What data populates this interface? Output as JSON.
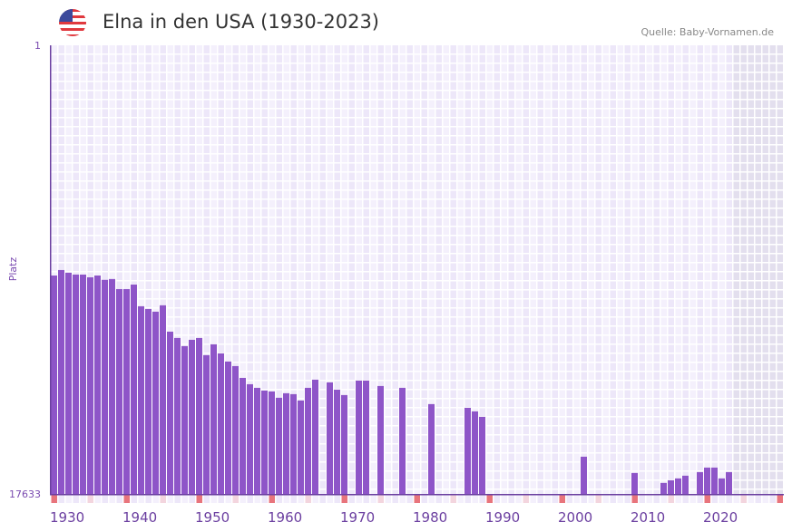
{
  "header": {
    "title": "Elna in den USA (1930-2023)",
    "source": "Quelle: Baby-Vornamen.de",
    "flag_icon": "us-flag-icon"
  },
  "colors": {
    "bar": "#8e55c8",
    "axis": "#6b3fa0",
    "decade_marker": "#e8747c",
    "half_decade_marker": "#f3d5de",
    "future": "#e3dfee"
  },
  "chart_data": {
    "type": "bar",
    "title": "Elna in den USA (1930-2023)",
    "ylabel": "Platz",
    "y_scale": "log-reversed",
    "ylim": [
      1,
      17633
    ],
    "ytick_labels": [
      "1",
      "17633"
    ],
    "xlim": [
      1930,
      2030
    ],
    "xtick_labels": [
      "1930",
      "1940",
      "1950",
      "1960",
      "1970",
      "1980",
      "1990",
      "2000",
      "2010",
      "2020"
    ],
    "future_from": 2024,
    "x": [
      1930,
      1931,
      1932,
      1933,
      1934,
      1935,
      1936,
      1937,
      1938,
      1939,
      1940,
      1941,
      1942,
      1943,
      1944,
      1945,
      1946,
      1947,
      1948,
      1949,
      1950,
      1951,
      1952,
      1953,
      1954,
      1955,
      1956,
      1957,
      1958,
      1959,
      1960,
      1961,
      1962,
      1963,
      1964,
      1965,
      1966,
      1968,
      1969,
      1970,
      1972,
      1973,
      1975,
      1978,
      1982,
      1987,
      1988,
      1989,
      2003,
      2010,
      2014,
      2015,
      2016,
      2017,
      2019,
      2020,
      2021,
      2022,
      2023
    ],
    "values": [
      151,
      134,
      142,
      148,
      148,
      157,
      151,
      166,
      163,
      203,
      203,
      184,
      295,
      313,
      332,
      289,
      513,
      589,
      703,
      613,
      589,
      857,
      676,
      824,
      984,
      1087,
      1406,
      1614,
      1746,
      1853,
      1889,
      2168,
      1964,
      2004,
      2301,
      1746,
      1462,
      1550,
      1816,
      2044,
      1490,
      1490,
      1678,
      1746,
      2489,
      2698,
      2917,
      3283,
      7833,
      11170,
      13870,
      13090,
      12570,
      11850,
      10950,
      9930,
      9930,
      12570,
      10950
    ]
  }
}
